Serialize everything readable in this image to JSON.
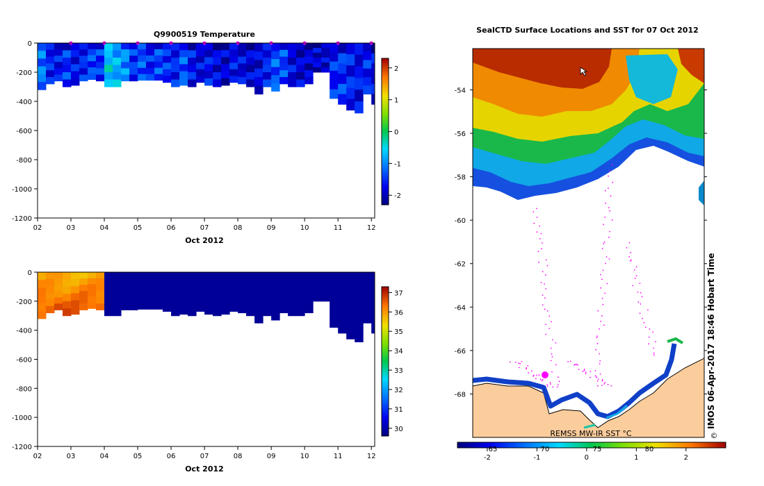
{
  "chart_data": [
    {
      "id": "temperature_section",
      "type": "heatmap",
      "title": "Q9900519  Temperature",
      "xlabel": "Oct 2012",
      "x_ticks": [
        "02",
        "03",
        "04",
        "05",
        "06",
        "07",
        "08",
        "09",
        "10",
        "11",
        "12"
      ],
      "xlim": [
        2,
        12.1
      ],
      "y_ticks": [
        "0",
        "-200",
        "-400",
        "-600",
        "-800",
        "-1000",
        "-1200"
      ],
      "ylim": [
        -1200,
        0
      ],
      "colorbar": {
        "ticks": [
          "2",
          "1",
          "0",
          "-1",
          "-2"
        ],
        "range": [
          -2.3,
          2.3
        ]
      },
      "profile_markers_day": [
        3,
        4,
        5,
        6,
        7,
        8,
        9,
        10,
        11,
        12
      ],
      "profiles": [
        {
          "day": 2.0,
          "depth": 320,
          "value": -1.1
        },
        {
          "day": 2.25,
          "depth": 280,
          "value": -1.6
        },
        {
          "day": 2.5,
          "depth": 260,
          "value": -1.7
        },
        {
          "day": 2.75,
          "depth": 300,
          "value": -1.5
        },
        {
          "day": 3.0,
          "depth": 290,
          "value": -1.7
        },
        {
          "day": 3.25,
          "depth": 260,
          "value": -1.6
        },
        {
          "day": 3.5,
          "depth": 250,
          "value": -1.4
        },
        {
          "day": 3.75,
          "depth": 260,
          "value": -1.5
        },
        {
          "day": 4.0,
          "depth": 300,
          "value": -0.6
        },
        {
          "day": 4.25,
          "depth": 300,
          "value": -0.8
        },
        {
          "day": 4.5,
          "depth": 260,
          "value": -1.0
        },
        {
          "day": 4.75,
          "depth": 260,
          "value": -1.5
        },
        {
          "day": 5.0,
          "depth": 255,
          "value": -1.3
        },
        {
          "day": 5.25,
          "depth": 255,
          "value": -1.6
        },
        {
          "day": 5.5,
          "depth": 255,
          "value": -1.4
        },
        {
          "day": 5.75,
          "depth": 270,
          "value": -1.5
        },
        {
          "day": 6.0,
          "depth": 300,
          "value": -1.6
        },
        {
          "day": 6.25,
          "depth": 290,
          "value": -1.3
        },
        {
          "day": 6.5,
          "depth": 300,
          "value": -1.7
        },
        {
          "day": 6.75,
          "depth": 270,
          "value": -1.8
        },
        {
          "day": 7.0,
          "depth": 290,
          "value": -1.7
        },
        {
          "day": 7.25,
          "depth": 300,
          "value": -1.8
        },
        {
          "day": 7.5,
          "depth": 290,
          "value": -1.9
        },
        {
          "day": 7.75,
          "depth": 270,
          "value": -1.7
        },
        {
          "day": 8.0,
          "depth": 280,
          "value": -1.8
        },
        {
          "day": 8.25,
          "depth": 300,
          "value": -1.9
        },
        {
          "day": 8.5,
          "depth": 350,
          "value": -1.8
        },
        {
          "day": 8.75,
          "depth": 300,
          "value": -1.6
        },
        {
          "day": 9.0,
          "depth": 330,
          "value": -1.3
        },
        {
          "day": 9.25,
          "depth": 280,
          "value": -1.4
        },
        {
          "day": 9.5,
          "depth": 300,
          "value": -1.8
        },
        {
          "day": 9.75,
          "depth": 300,
          "value": -1.9
        },
        {
          "day": 10.0,
          "depth": 280,
          "value": -1.9
        },
        {
          "day": 10.25,
          "depth": 200,
          "value": -1.9
        },
        {
          "day": 10.5,
          "depth": 200,
          "value": -1.9
        },
        {
          "day": 10.75,
          "depth": 380,
          "value": -1.6
        },
        {
          "day": 11.0,
          "depth": 420,
          "value": -1.5
        },
        {
          "day": 11.25,
          "depth": 460,
          "value": -1.6
        },
        {
          "day": 11.5,
          "depth": 480,
          "value": -1.7
        },
        {
          "day": 11.75,
          "depth": 350,
          "value": -1.6
        },
        {
          "day": 12.0,
          "depth": 420,
          "value": -1.8
        }
      ]
    },
    {
      "id": "salinity_section",
      "type": "heatmap",
      "title": "",
      "xlabel": "Oct 2012",
      "x_ticks": [
        "02",
        "03",
        "04",
        "05",
        "06",
        "07",
        "08",
        "09",
        "10",
        "11",
        "12"
      ],
      "xlim": [
        2,
        12.1
      ],
      "y_ticks": [
        "0",
        "-200",
        "-400",
        "-600",
        "-800",
        "-1000",
        "-1200"
      ],
      "ylim": [
        -1200,
        0
      ],
      "colorbar": {
        "ticks": [
          "37",
          "36",
          "35",
          "34",
          "33",
          "32",
          "31",
          "30"
        ],
        "range": [
          29.6,
          37.3
        ]
      },
      "high_value_until_day": 4.0,
      "high_value": 36.2,
      "low_value": 29.8
    },
    {
      "id": "sst_map",
      "type": "heatmap",
      "title": "SealCTD Surface Locations and SST for 07 Oct 2012",
      "y_ticks": [
        "-54",
        "-56",
        "-58",
        "-60",
        "-62",
        "-64",
        "-66",
        "-68"
      ],
      "ylim": [
        -70,
        -52.1
      ],
      "caption": "REMSS MW-IR SST °C",
      "colorbar": {
        "ticks": [
          "-2",
          "-1",
          "0",
          "1",
          "2"
        ],
        "range": [
          -2.6,
          2.8
        ],
        "overlay_ticks": [
          "65",
          "70",
          "75",
          "80"
        ]
      },
      "watermark": "IMOS 06-Apr-2017 18:46 Hobart Time",
      "copyright_symbol": "©"
    }
  ],
  "colors": {
    "ice_land": "#fccd9c",
    "track": "#ff00ff",
    "axis": "#000000"
  }
}
